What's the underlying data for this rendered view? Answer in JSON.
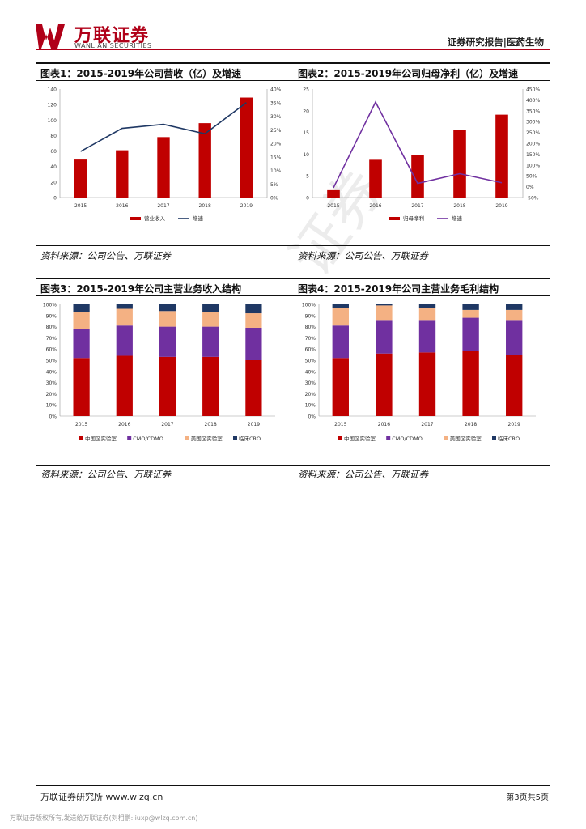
{
  "header": {
    "logo_cn": "万联证券",
    "logo_en": "WANLIAN SECURITIES",
    "report_type": "证券研究报告|医药生物"
  },
  "watermark": "证券",
  "figures": [
    {
      "title": "图表1：2015-2019年公司营收（亿）及增速",
      "source": "资料来源：公司公告、万联证券"
    },
    {
      "title": "图表2：2015-2019年公司归母净利（亿）及增速",
      "source": "资料来源：公司公告、万联证券"
    },
    {
      "title": "图表3：2015-2019年公司主营业务收入结构",
      "source": "资料来源：公司公告、万联证券"
    },
    {
      "title": "图表4：2015-2019年公司主营业务毛利结构",
      "source": "资料来源：公司公告、万联证券"
    }
  ],
  "footer": {
    "org": "万联证券研究所 www.wlzq.cn",
    "page": "第3页共5页",
    "note": "万联证券版权所有,发送给万联证券(刘相鹏:liuxp@wlzq.com.cn)"
  },
  "colors": {
    "red": "#c00000",
    "navy": "#1f3864",
    "purple": "#7030a0",
    "peach": "#f4b183"
  },
  "chart_data": [
    {
      "type": "bar",
      "categories": [
        "2015",
        "2016",
        "2017",
        "2018",
        "2019"
      ],
      "series": [
        {
          "name": "营业收入",
          "type": "bar",
          "axis": "left",
          "values": [
            49,
            61,
            78,
            96,
            129
          ]
        },
        {
          "name": "增速",
          "type": "line",
          "axis": "right",
          "values": [
            17,
            25.5,
            27,
            23.5,
            35
          ]
        }
      ],
      "ylim": [
        0,
        140
      ],
      "yticks": [
        0,
        20,
        40,
        60,
        80,
        100,
        120,
        140
      ],
      "y2lim": [
        0,
        40
      ],
      "y2ticks": [
        "0%",
        "5%",
        "10%",
        "15%",
        "20%",
        "25%",
        "30%",
        "35%",
        "40%"
      ],
      "legend": "bottom"
    },
    {
      "type": "bar",
      "categories": [
        "2015",
        "2016",
        "2017",
        "2018",
        "2019"
      ],
      "series": [
        {
          "name": "归母净利",
          "type": "bar",
          "axis": "left",
          "values": [
            1.7,
            8.7,
            9.8,
            15.6,
            19.1
          ]
        },
        {
          "name": "增速",
          "type": "line",
          "axis": "right",
          "values": [
            -5,
            390,
            15,
            60,
            18
          ]
        }
      ],
      "ylim": [
        0,
        25
      ],
      "yticks": [
        0,
        5,
        10,
        15,
        20,
        25
      ],
      "y2lim": [
        -50,
        450
      ],
      "y2ticks": [
        "-50%",
        "0%",
        "50%",
        "100%",
        "150%",
        "200%",
        "250%",
        "300%",
        "350%",
        "400%",
        "450%"
      ],
      "legend": "bottom"
    },
    {
      "type": "bar",
      "stacked": true,
      "categories": [
        "2015",
        "2016",
        "2017",
        "2018",
        "2019"
      ],
      "series": [
        {
          "name": "中国区实验室",
          "values": [
            52,
            54,
            53,
            53,
            50
          ]
        },
        {
          "name": "CMO/CDMO",
          "values": [
            26,
            27,
            27,
            27,
            29
          ]
        },
        {
          "name": "美国区实验室",
          "values": [
            15,
            15,
            14,
            13,
            13
          ]
        },
        {
          "name": "临床CRO",
          "values": [
            7,
            4,
            6,
            7,
            8
          ]
        }
      ],
      "ylim": [
        0,
        100
      ],
      "yticks": [
        "0%",
        "10%",
        "20%",
        "30%",
        "40%",
        "50%",
        "60%",
        "70%",
        "80%",
        "90%",
        "100%"
      ],
      "legend": "bottom"
    },
    {
      "type": "bar",
      "stacked": true,
      "categories": [
        "2015",
        "2016",
        "2017",
        "2018",
        "2019"
      ],
      "series": [
        {
          "name": "中国区实验室",
          "values": [
            52,
            56,
            57,
            58,
            55
          ]
        },
        {
          "name": "CMO/CDMO",
          "values": [
            29,
            30,
            29,
            30,
            31
          ]
        },
        {
          "name": "美国区实验室",
          "values": [
            16,
            13,
            11,
            7,
            9
          ]
        },
        {
          "name": "临床CRO",
          "values": [
            3,
            1,
            3,
            5,
            5
          ]
        }
      ],
      "ylim": [
        0,
        100
      ],
      "yticks": [
        "0%",
        "10%",
        "20%",
        "30%",
        "40%",
        "50%",
        "60%",
        "70%",
        "80%",
        "90%",
        "100%"
      ],
      "legend": "bottom"
    }
  ]
}
